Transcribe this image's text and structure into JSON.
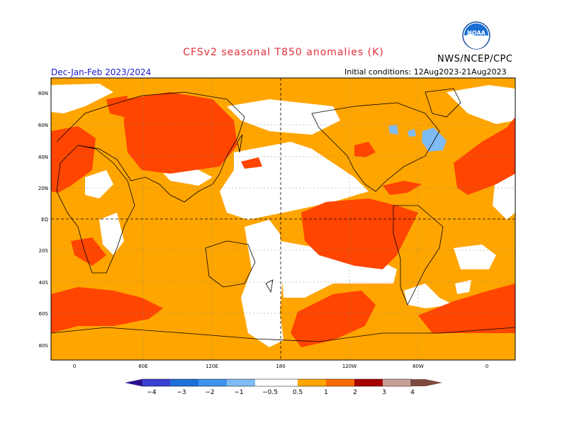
{
  "title": "CFSv2 seasonal T850 anomalies (K)",
  "agency": "NWS/NCEP/CPC",
  "season": "Dec-Jan-Feb 2023/2024",
  "initial_conditions": "Initial conditions: 12Aug2023-21Aug2023",
  "logo_text": "NOAA",
  "lat_labels": [
    "80N",
    "60N",
    "40N",
    "20N",
    "EQ",
    "20S",
    "40S",
    "60S",
    "80S"
  ],
  "lon_labels": [
    "0",
    "60E",
    "120E",
    "180",
    "120W",
    "60W",
    "0"
  ],
  "colorbar": {
    "ticks": [
      "−4",
      "−3",
      "−2",
      "−1",
      "−0.5",
      "0.5",
      "1",
      "2",
      "3",
      "4"
    ],
    "colors": [
      "#2a0f8e",
      "#3b3fd4",
      "#1f6fd8",
      "#3e94ee",
      "#7fbbf5",
      "#ffffff",
      "#ffa500",
      "#ff6a00",
      "#e8320a",
      "#a80000",
      "#c9a098",
      "#7d4a40"
    ]
  },
  "colors": {
    "moderate_warm": "#ffa500",
    "warm": "#ff6a00",
    "strong_warm": "#e8320a",
    "cool": "#7fbbf5",
    "coastline": "#000000",
    "title": "#e0303a",
    "season": "#1a1acc"
  }
}
